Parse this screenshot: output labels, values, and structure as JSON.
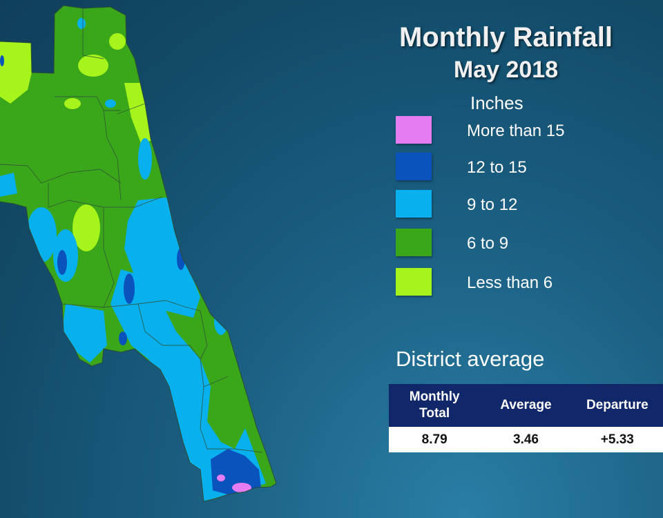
{
  "title": "Monthly Rainfall",
  "subtitle": "May 2018",
  "legend": {
    "heading": "Inches",
    "items": [
      {
        "label": "More than 15",
        "color": "#e57cf2"
      },
      {
        "label": "12 to 15",
        "color": "#0a53bd"
      },
      {
        "label": "9 to 12",
        "color": "#08b0ee"
      },
      {
        "label": "6 to 9",
        "color": "#3aa619"
      },
      {
        "label": "Less than 6",
        "color": "#a6f41c"
      }
    ]
  },
  "district": {
    "heading": "District average",
    "columns": [
      "Monthly\nTotal",
      "Average",
      "Departure"
    ],
    "values": [
      "8.79",
      "3.46",
      "+5.33"
    ]
  }
}
